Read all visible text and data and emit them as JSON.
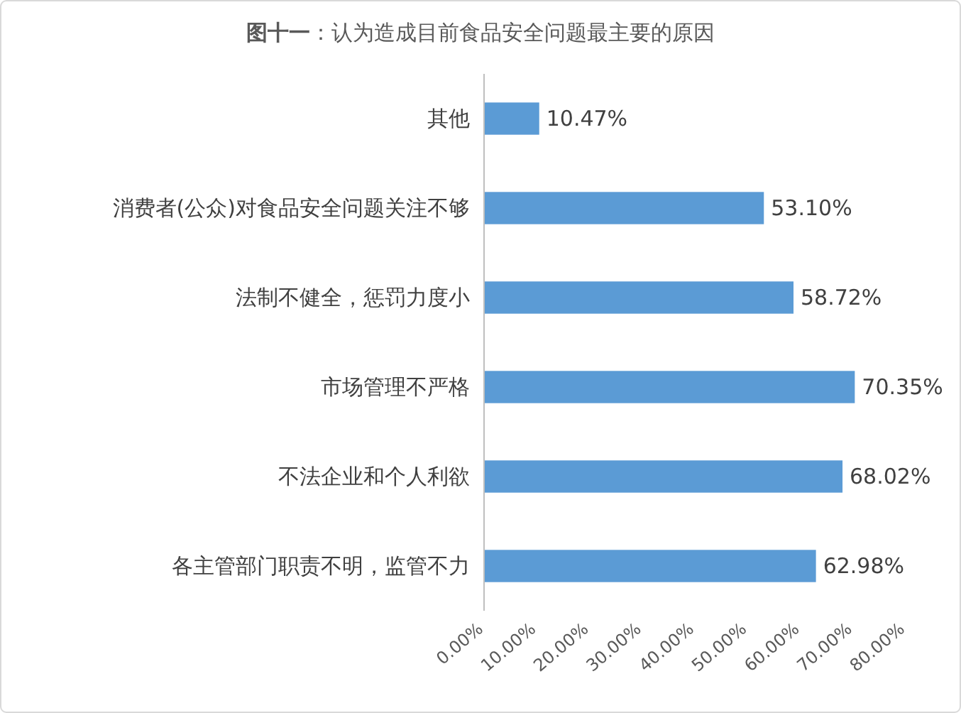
{
  "chart_data": {
    "type": "bar",
    "orientation": "horizontal",
    "title": "**图十一**：认为造成目前食品安全问题最主要的原因",
    "categories": [
      "其他",
      "消费者(公众)对食品安全问题关注不够",
      "法制不健全，惩罚力度小",
      "市场管理不严格",
      "不法企业和个人利欲",
      "各主管部门职责不明，监管不力"
    ],
    "values": [
      10.47,
      53.1,
      58.72,
      70.35,
      68.02,
      62.98
    ],
    "value_labels": [
      "10.47%",
      "53.10%",
      "58.72%",
      "70.35%",
      "68.02%",
      "62.98%"
    ],
    "color": "#5b9bd5",
    "xlim": [
      0,
      80
    ],
    "xticks": [
      {
        "value": 0,
        "label": "0.00%"
      },
      {
        "value": 10,
        "label": "10.00%"
      },
      {
        "value": 20,
        "label": "20.00%"
      },
      {
        "value": 30,
        "label": "30.00%"
      },
      {
        "value": 40,
        "label": "40.00%"
      },
      {
        "value": 50,
        "label": "50.00%"
      },
      {
        "value": 60,
        "label": "60.00%"
      },
      {
        "value": 70,
        "label": "70.00%"
      },
      {
        "value": 80,
        "label": "80.00%"
      }
    ],
    "grid": false
  }
}
